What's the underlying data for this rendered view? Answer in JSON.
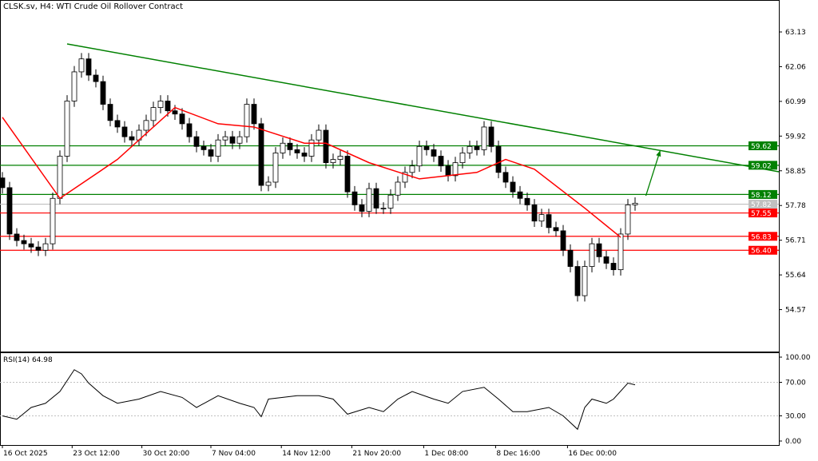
{
  "header": {
    "title": "CLSK.sv, H4:  WTI Crude Oil Rollover Contract"
  },
  "chart_data": {
    "type": "candlestick",
    "symbol": "CLSK.sv",
    "timeframe": "H4",
    "title": "CLSK.sv, H4:  WTI Crude Oil Rollover Contract",
    "ylim": [
      53.8,
      63.9
    ],
    "y_ticks": [
      "63.13",
      "62.06",
      "60.99",
      "59.92",
      "58.85",
      "57.78",
      "56.71",
      "55.64",
      "54.57"
    ],
    "x_ticks": [
      {
        "label": "16 Oct 2025",
        "bar": 0
      },
      {
        "label": "23 Oct 12:00",
        "bar": 9.7
      },
      {
        "label": "30 Oct 20:00",
        "bar": 19.4
      },
      {
        "label": "7 Nov 04:00",
        "bar": 29
      },
      {
        "label": "14 Nov 12:00",
        "bar": 38.8
      },
      {
        "label": "21 Nov 20:00",
        "bar": 48.6
      },
      {
        "label": "1 Dec 08:00",
        "bar": 58.6
      },
      {
        "label": "8 Dec 16:00",
        "bar": 68.6
      },
      {
        "label": "16 Dec 00:00",
        "bar": 78.6
      }
    ],
    "closes": [
      58.33,
      56.9,
      56.7,
      56.6,
      56.5,
      56.4,
      56.6,
      58.0,
      59.3,
      61.0,
      61.9,
      62.3,
      61.8,
      61.6,
      60.9,
      60.4,
      60.2,
      59.9,
      59.8,
      60.1,
      60.4,
      60.8,
      61.0,
      60.7,
      60.6,
      60.3,
      59.9,
      59.6,
      59.5,
      59.3,
      59.8,
      59.9,
      59.7,
      59.9,
      60.9,
      60.3,
      58.4,
      58.5,
      59.4,
      59.7,
      59.5,
      59.4,
      59.3,
      59.8,
      60.1,
      59.1,
      59.2,
      59.3,
      58.2,
      57.8,
      57.6,
      58.3,
      57.7,
      57.7,
      58.1,
      58.5,
      58.8,
      59.0,
      59.6,
      59.5,
      59.3,
      59.0,
      58.7,
      59.1,
      59.4,
      59.6,
      59.5,
      60.2,
      59.6,
      58.8,
      58.5,
      58.2,
      58.0,
      57.8,
      57.3,
      57.5,
      57.1,
      57.0,
      56.4,
      55.9,
      55.0,
      55.9,
      56.6,
      56.2,
      56.0,
      55.8,
      56.9,
      57.8,
      57.85
    ],
    "moving_average": [
      [
        0,
        60.5
      ],
      [
        8,
        58.0
      ],
      [
        16,
        59.2
      ],
      [
        24,
        60.8
      ],
      [
        30,
        60.3
      ],
      [
        35,
        60.2
      ],
      [
        42,
        59.7
      ],
      [
        45,
        59.7
      ],
      [
        51,
        59.1
      ],
      [
        58,
        58.6
      ],
      [
        66,
        58.8
      ],
      [
        70,
        59.2
      ],
      [
        74,
        58.9
      ],
      [
        81,
        57.7
      ],
      [
        86,
        56.8
      ]
    ],
    "moving_average_color": "#ff0000",
    "trendline": {
      "from": [
        9,
        62.76
      ],
      "to": [
        108,
        58.82
      ],
      "color": "#008000"
    },
    "arrow": {
      "from": [
        89.5,
        58.08
      ],
      "to": [
        91.5,
        59.48
      ],
      "color": "#008000"
    },
    "current_price": {
      "label": "57.82",
      "value": 57.82,
      "color": "#c0c0c0"
    },
    "resistance_levels": [
      {
        "label": "59.62",
        "value": 59.62
      },
      {
        "label": "59.02",
        "value": 59.02
      },
      {
        "label": "58.12",
        "value": 58.12
      }
    ],
    "support_levels": [
      {
        "label": "57.55",
        "value": 57.55
      },
      {
        "label": "56.83",
        "value": 56.83
      },
      {
        "label": "56.40",
        "value": 56.4
      }
    ],
    "resistance_color": "#008000",
    "support_color": "#ff0000",
    "rsi": {
      "label": "RSI(14) 64.98",
      "ylim": [
        0,
        100
      ],
      "y_ticks": [
        "100.00",
        "70.00",
        "30.00",
        "0.00"
      ],
      "levels": [
        70,
        30
      ],
      "points": [
        [
          0,
          30
        ],
        [
          2,
          26
        ],
        [
          4,
          40
        ],
        [
          6,
          45
        ],
        [
          8,
          59
        ],
        [
          10,
          85
        ],
        [
          11,
          80
        ],
        [
          12,
          69
        ],
        [
          14,
          54
        ],
        [
          16,
          45
        ],
        [
          19,
          50
        ],
        [
          22,
          59
        ],
        [
          25,
          52
        ],
        [
          27,
          40
        ],
        [
          30,
          54
        ],
        [
          33,
          45
        ],
        [
          35,
          40
        ],
        [
          36,
          29
        ],
        [
          37,
          50
        ],
        [
          41,
          54
        ],
        [
          44,
          54
        ],
        [
          46,
          50
        ],
        [
          48,
          32
        ],
        [
          51,
          40
        ],
        [
          53,
          35
        ],
        [
          55,
          50
        ],
        [
          57,
          59
        ],
        [
          60,
          50
        ],
        [
          62,
          45
        ],
        [
          64,
          59
        ],
        [
          67,
          64
        ],
        [
          69,
          50
        ],
        [
          71,
          35
        ],
        [
          73,
          35
        ],
        [
          76,
          40
        ],
        [
          78,
          30
        ],
        [
          80,
          14
        ],
        [
          81,
          40
        ],
        [
          82,
          50
        ],
        [
          84,
          45
        ],
        [
          85,
          50
        ],
        [
          87,
          69
        ],
        [
          88,
          67
        ]
      ]
    }
  }
}
